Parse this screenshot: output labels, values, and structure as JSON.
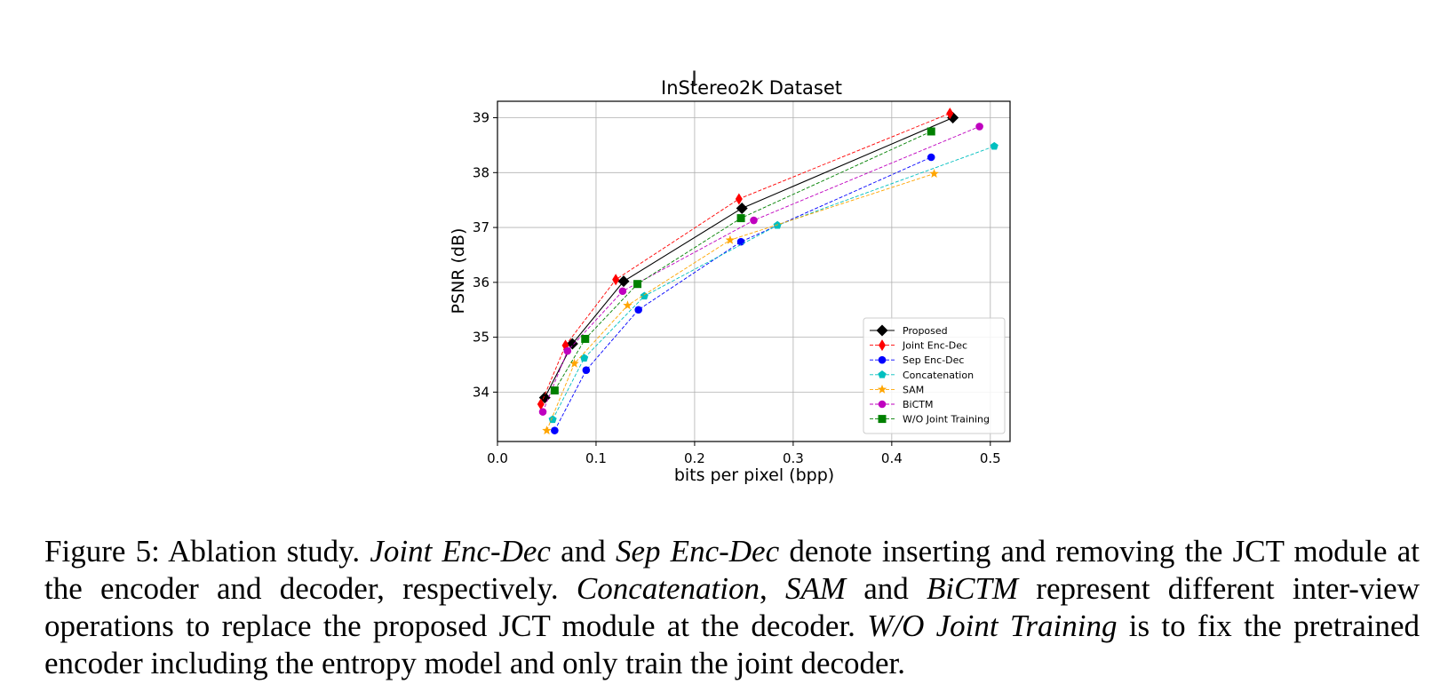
{
  "chart_data": {
    "type": "line",
    "title": "InStereo2K Dataset",
    "xlabel": "bits per pixel (bpp)",
    "ylabel": "PSNR (dB)",
    "xlim": [
      0.0,
      0.52
    ],
    "ylim": [
      33.1,
      39.3
    ],
    "xticks": [
      0.0,
      0.1,
      0.2,
      0.3,
      0.4,
      0.5
    ],
    "xtick_labels": [
      "0.0",
      "0.1",
      "0.2",
      "0.3",
      "0.4",
      "0.5"
    ],
    "yticks": [
      34,
      35,
      36,
      37,
      38,
      39
    ],
    "ytick_labels": [
      "34",
      "35",
      "36",
      "37",
      "38",
      "39"
    ],
    "grid": true,
    "legend_position": "lower-right",
    "series": [
      {
        "name": "Proposed",
        "color": "#000000",
        "marker": "diamond",
        "linestyle": "solid",
        "x": [
          0.048,
          0.076,
          0.128,
          0.248,
          0.462
        ],
        "y": [
          33.9,
          34.88,
          36.02,
          37.35,
          39.0
        ]
      },
      {
        "name": "Joint Enc-Dec",
        "color": "#ff0000",
        "marker": "thin-diamond",
        "linestyle": "dashed",
        "x": [
          0.044,
          0.069,
          0.12,
          0.245,
          0.459
        ],
        "y": [
          33.78,
          34.85,
          36.05,
          37.52,
          39.08
        ]
      },
      {
        "name": "Sep Enc-Dec",
        "color": "#0000ff",
        "marker": "circle",
        "linestyle": "dashed",
        "x": [
          0.058,
          0.09,
          0.143,
          0.247,
          0.44
        ],
        "y": [
          33.3,
          34.4,
          35.5,
          36.74,
          38.28
        ]
      },
      {
        "name": "Concatenation",
        "color": "#00bfbf",
        "marker": "pentagon",
        "linestyle": "dashed",
        "x": [
          0.056,
          0.088,
          0.149,
          0.284,
          0.504
        ],
        "y": [
          33.5,
          34.62,
          35.75,
          37.04,
          38.48
        ]
      },
      {
        "name": "SAM",
        "color": "#ffa500",
        "marker": "star",
        "linestyle": "dashed",
        "x": [
          0.05,
          0.078,
          0.132,
          0.236,
          0.443
        ],
        "y": [
          33.3,
          34.52,
          35.58,
          36.77,
          37.98
        ]
      },
      {
        "name": "BiCTM",
        "color": "#bf00bf",
        "marker": "circle",
        "linestyle": "dashed",
        "x": [
          0.046,
          0.071,
          0.127,
          0.26,
          0.489
        ],
        "y": [
          33.64,
          34.75,
          35.84,
          37.13,
          38.84
        ]
      },
      {
        "name": "W/O Joint Training",
        "color": "#008000",
        "marker": "square",
        "linestyle": "dashed",
        "x": [
          0.058,
          0.089,
          0.142,
          0.247,
          0.44
        ],
        "y": [
          34.03,
          34.97,
          35.97,
          37.17,
          38.75
        ]
      }
    ]
  },
  "caption": {
    "p1": "Figure 5: Ablation study. ",
    "i1": "Joint Enc-Dec",
    "p2": " and ",
    "i2": "Sep Enc-Dec",
    "p3": " denote inserting and removing the JCT module at the encoder and decoder, respectively. ",
    "i3": "Concatenation",
    "p4": ", ",
    "i4": "SAM",
    "p5": " and ",
    "i5": "BiCTM",
    "p6": " represent different inter-view operations to replace the proposed JCT module at the decoder. ",
    "i6": "W/O Joint Training",
    "p7": " is to fix the pretrained encoder including the entropy model and only train the joint decoder."
  }
}
